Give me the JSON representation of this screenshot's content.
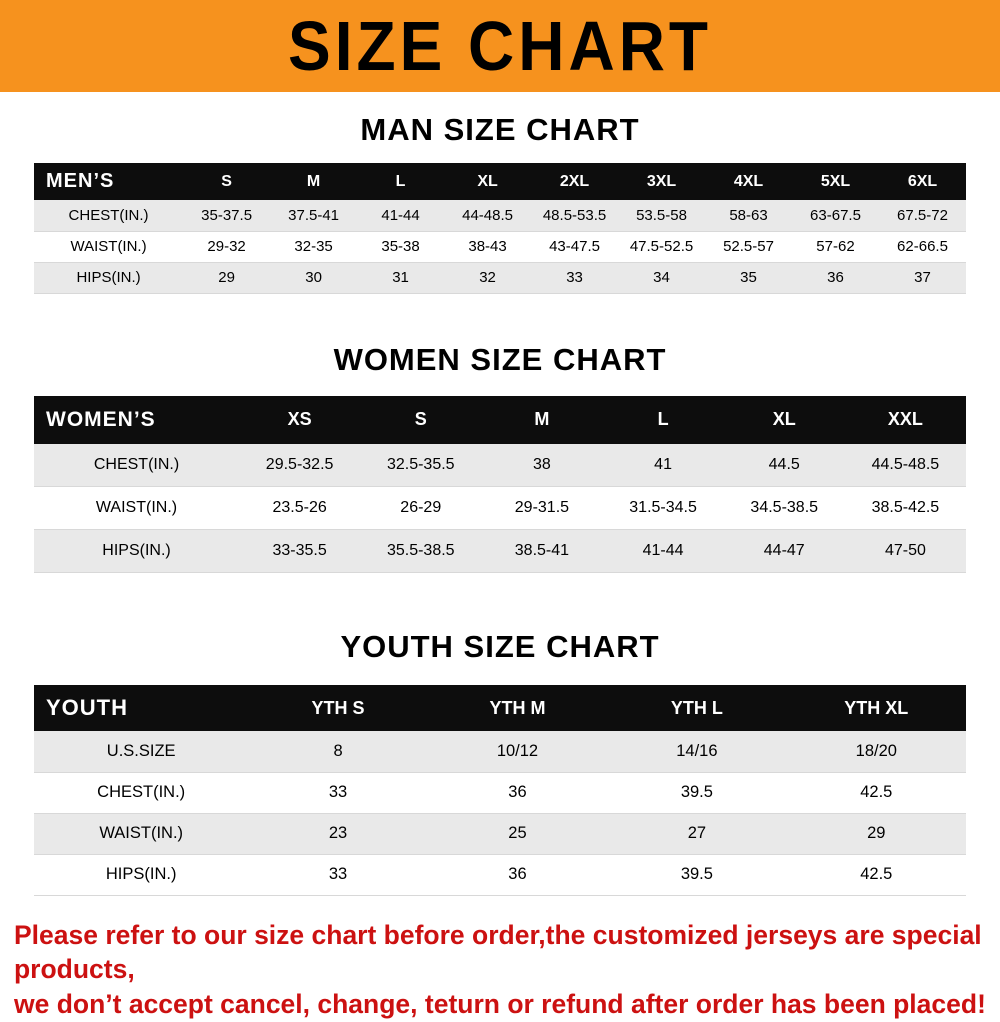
{
  "banner": {
    "title": "SIZE CHART"
  },
  "colors": {
    "banner_orange": "#f6921e",
    "table_header_black": "#0d0d0d",
    "stripe_gray": "#e9e9e9",
    "notice_red": "#cc1111"
  },
  "sections": [
    {
      "key": "men",
      "heading": "MAN SIZE CHART",
      "table": {
        "header": [
          "MEN’S",
          "S",
          "M",
          "L",
          "XL",
          "2XL",
          "3XL",
          "4XL",
          "5XL",
          "6XL"
        ],
        "rows": [
          [
            "CHEST(IN.)",
            "35-37.5",
            "37.5-41",
            "41-44",
            "44-48.5",
            "48.5-53.5",
            "53.5-58",
            "58-63",
            "63-67.5",
            "67.5-72"
          ],
          [
            "WAIST(IN.)",
            "29-32",
            "32-35",
            "35-38",
            "38-43",
            "43-47.5",
            "47.5-52.5",
            "52.5-57",
            "57-62",
            "62-66.5"
          ],
          [
            "HIPS(IN.)",
            "29",
            "30",
            "31",
            "32",
            "33",
            "34",
            "35",
            "36",
            "37"
          ]
        ]
      }
    },
    {
      "key": "women",
      "heading": "WOMEN SIZE CHART",
      "table": {
        "header": [
          "WOMEN’S",
          "XS",
          "S",
          "M",
          "L",
          "XL",
          "XXL"
        ],
        "rows": [
          [
            "CHEST(IN.)",
            "29.5-32.5",
            "32.5-35.5",
            "38",
            "41",
            "44.5",
            "44.5-48.5"
          ],
          [
            "WAIST(IN.)",
            "23.5-26",
            "26-29",
            "29-31.5",
            "31.5-34.5",
            "34.5-38.5",
            "38.5-42.5"
          ],
          [
            "HIPS(IN.)",
            "33-35.5",
            "35.5-38.5",
            "38.5-41",
            "41-44",
            "44-47",
            "47-50"
          ]
        ]
      }
    },
    {
      "key": "youth",
      "heading": "YOUTH SIZE CHART",
      "table": {
        "header": [
          "YOUTH",
          "YTH S",
          "YTH M",
          "YTH L",
          "YTH XL"
        ],
        "rows": [
          [
            "U.S.SIZE",
            "8",
            "10/12",
            "14/16",
            "18/20"
          ],
          [
            "CHEST(IN.)",
            "33",
            "36",
            "39.5",
            "42.5"
          ],
          [
            "WAIST(IN.)",
            "23",
            "25",
            "27",
            "29"
          ],
          [
            "HIPS(IN.)",
            "33",
            "36",
            "39.5",
            "42.5"
          ]
        ]
      }
    }
  ],
  "footer": {
    "line1": "Please refer to our size chart before order,the customized jerseys are special products,",
    "line2": "we don’t accept cancel, change, teturn or refund after order has been placed!"
  }
}
